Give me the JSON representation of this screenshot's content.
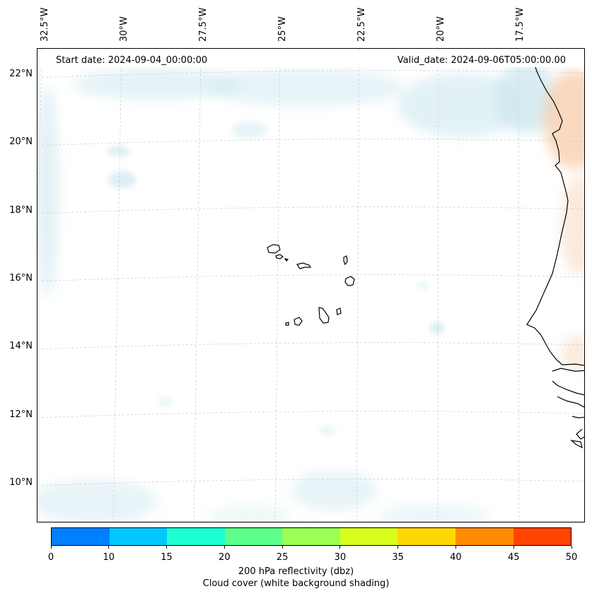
{
  "header": {
    "start_date": "Start date: 2024-09-04_00:00:00",
    "valid_date": "Valid_date: 2024-09-06T05:00:00.00"
  },
  "map": {
    "longitude_labels": [
      "32.5°W",
      "30°W",
      "27.5°W",
      "25°W",
      "22.5°W",
      "20°W",
      "17.5°W"
    ],
    "latitude_labels": [
      "22°N",
      "20°N",
      "18°N",
      "16°N",
      "14°N",
      "12°N",
      "10°N"
    ],
    "coastline_color": "#000000",
    "gridline_color": "#c8c8c8",
    "cloud_shading_color": "#cfe8f0",
    "warm_shading_color": "#f7c9a6"
  },
  "colorbar": {
    "ticks": [
      "0",
      "10",
      "15",
      "20",
      "25",
      "30",
      "35",
      "40",
      "45",
      "50"
    ],
    "colors": [
      "#0080ff",
      "#00c8ff",
      "#1effd2",
      "#5cff8a",
      "#9bff55",
      "#d8ff1e",
      "#ffd700",
      "#ff8c00",
      "#ff4500"
    ],
    "label_line1": "200 hPa reflectivity (dbz)",
    "label_line2": "Cloud cover (white background shading)"
  }
}
